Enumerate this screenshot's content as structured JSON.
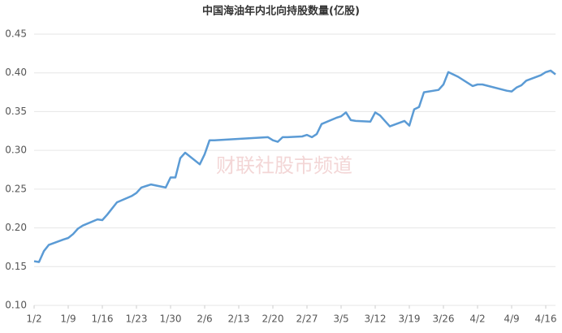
{
  "chart_data": {
    "type": "line",
    "title": "中国海油年内北向持股数量(亿股)",
    "watermark": "财联社股市频道",
    "x": [
      "1/2",
      "1/3",
      "1/4",
      "1/5",
      "1/8",
      "1/9",
      "1/10",
      "1/11",
      "1/12",
      "1/15",
      "1/16",
      "1/17",
      "1/18",
      "1/19",
      "1/22",
      "1/23",
      "1/24",
      "1/25",
      "1/26",
      "1/29",
      "1/30",
      "1/31",
      "2/1",
      "2/2",
      "2/5",
      "2/6",
      "2/7",
      "2/8",
      "2/19",
      "2/20",
      "2/21",
      "2/22",
      "2/23",
      "2/26",
      "2/27",
      "2/28",
      "2/29",
      "3/1",
      "3/4",
      "3/5",
      "3/6",
      "3/7",
      "3/8",
      "3/11",
      "3/12",
      "3/13",
      "3/14",
      "3/15",
      "3/18",
      "3/19",
      "3/20",
      "3/21",
      "3/22",
      "3/25",
      "3/26",
      "3/27",
      "3/28",
      "3/29",
      "4/1",
      "4/2",
      "4/3",
      "4/8",
      "4/9",
      "4/10",
      "4/11",
      "4/12",
      "4/15",
      "4/16",
      "4/17",
      "4/18"
    ],
    "series": [
      {
        "name": "北向持股数量",
        "color": "#5b9bd5",
        "values": [
          0.157,
          0.156,
          0.17,
          0.178,
          0.185,
          0.187,
          0.192,
          0.199,
          0.203,
          0.211,
          0.21,
          0.217,
          0.225,
          0.233,
          0.241,
          0.245,
          0.252,
          0.254,
          0.256,
          0.252,
          0.265,
          0.265,
          0.29,
          0.297,
          0.282,
          0.295,
          0.313,
          0.313,
          0.317,
          0.313,
          0.311,
          0.317,
          0.317,
          0.318,
          0.32,
          0.317,
          0.321,
          0.334,
          0.342,
          0.344,
          0.349,
          0.339,
          0.338,
          0.337,
          0.349,
          0.345,
          0.338,
          0.331,
          0.338,
          0.332,
          0.353,
          0.356,
          0.375,
          0.378,
          0.385,
          0.401,
          0.398,
          0.395,
          0.383,
          0.385,
          0.385,
          0.377,
          0.376,
          0.381,
          0.384,
          0.39,
          0.397,
          0.401,
          0.403,
          0.398
        ]
      }
    ],
    "xlim": [
      "1/2",
      "4/18"
    ],
    "xticks": [
      "1/2",
      "1/9",
      "1/16",
      "1/23",
      "1/30",
      "2/6",
      "2/13",
      "2/20",
      "2/27",
      "3/5",
      "3/12",
      "3/19",
      "3/26",
      "4/2",
      "4/9",
      "4/16"
    ],
    "ylim": [
      0.1,
      0.45
    ],
    "yticks": [
      {
        "value": 0.1,
        "label": "0.10"
      },
      {
        "value": 0.15,
        "label": "0.15"
      },
      {
        "value": 0.2,
        "label": "0.20"
      },
      {
        "value": 0.25,
        "label": "0.25"
      },
      {
        "value": 0.3,
        "label": "0.30"
      },
      {
        "value": 0.35,
        "label": "0.35"
      },
      {
        "value": 0.4,
        "label": "0.40"
      },
      {
        "value": 0.45,
        "label": "0.45"
      }
    ],
    "grid": true
  }
}
